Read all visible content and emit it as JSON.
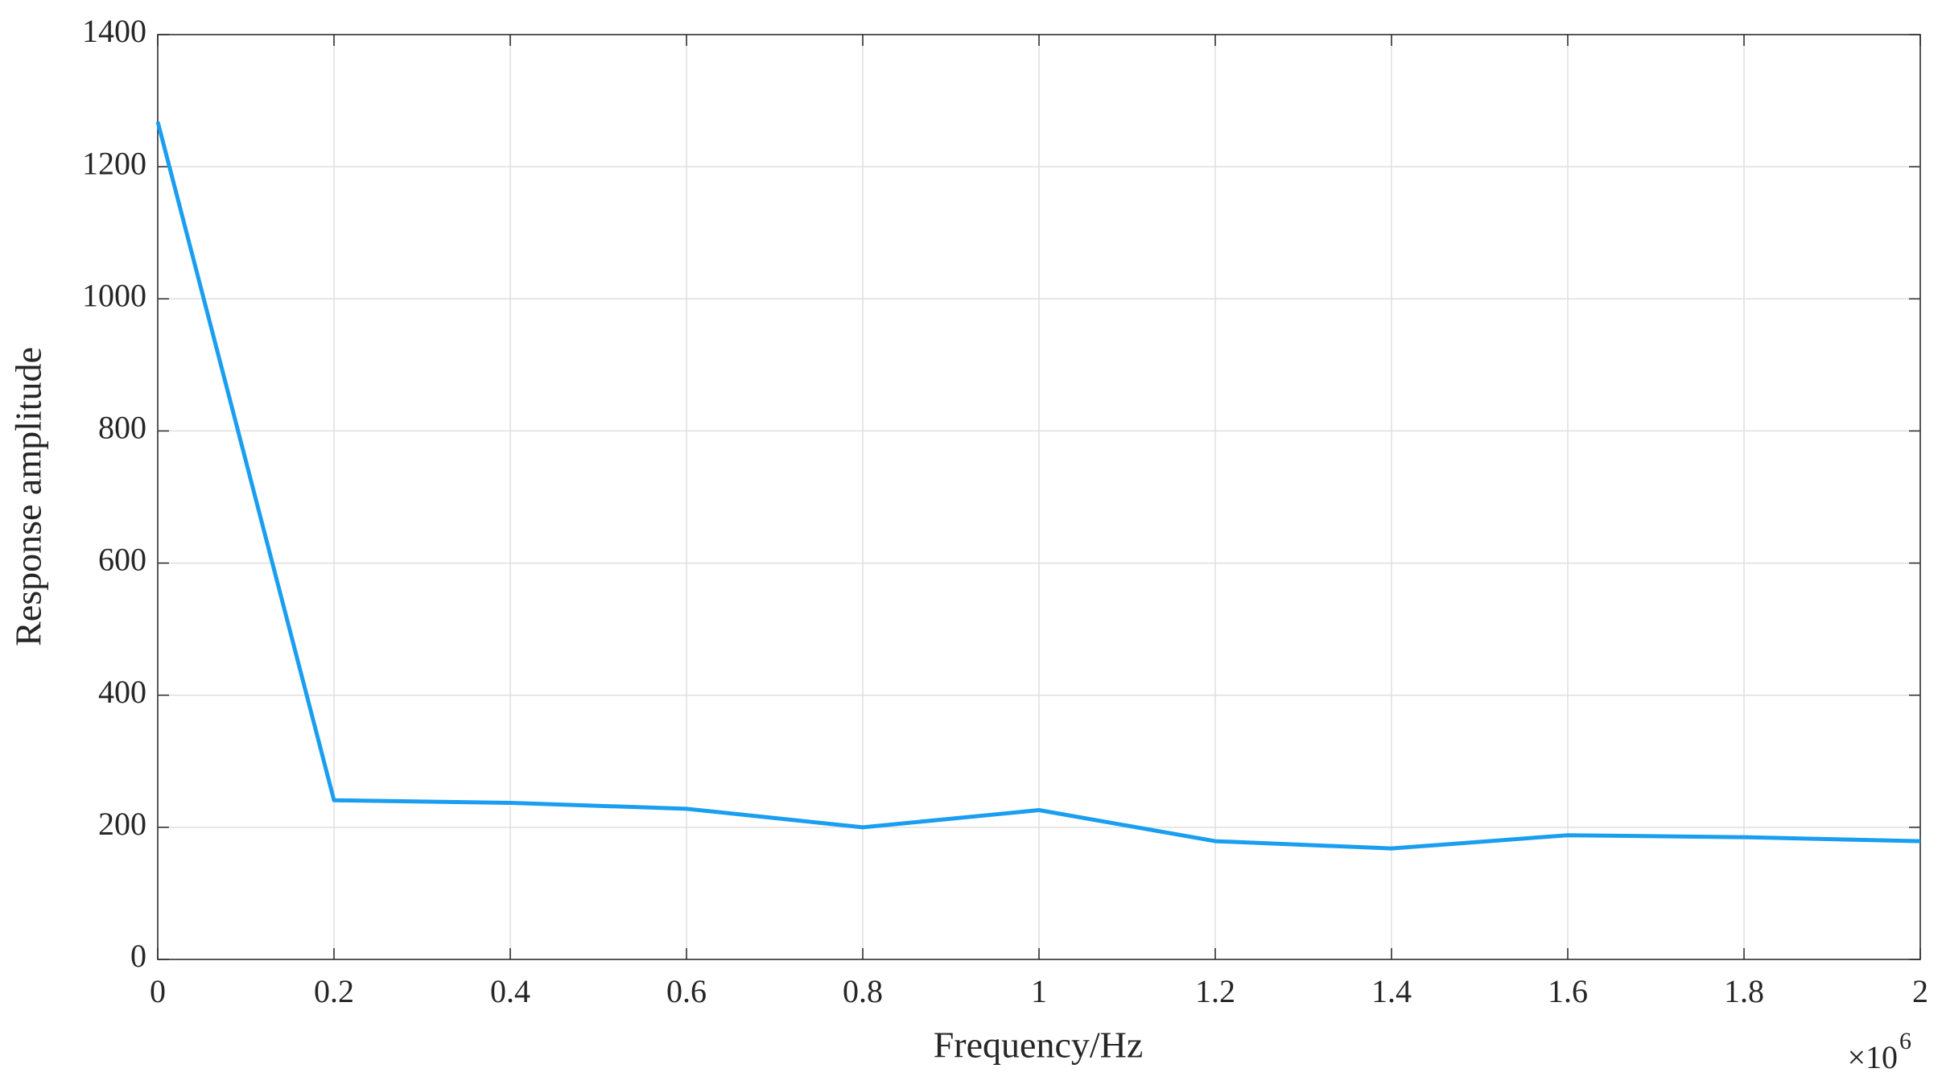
{
  "chart_data": {
    "type": "line",
    "x_label": "Frequency/Hz",
    "y_label": "Response amplitude",
    "x_scale_base": "×10",
    "x_scale_exponent": "6",
    "x": [
      0,
      200000,
      400000,
      600000,
      800000,
      1000000,
      1200000,
      1400000,
      1600000,
      1800000,
      2000000
    ],
    "values": [
      1268,
      241,
      237,
      228,
      200,
      226,
      179,
      168,
      188,
      185,
      179
    ],
    "color": "#1a9ef0",
    "xlim": [
      0,
      2000000
    ],
    "xticks": [
      0,
      {
        "value": 200000,
        "label": "0.2"
      },
      {
        "value": 400000,
        "label": "0.4"
      },
      {
        "value": 600000,
        "label": "0.6"
      },
      {
        "value": 800000,
        "label": "0.8"
      },
      {
        "value": 1000000,
        "label": "1"
      },
      {
        "value": 1200000,
        "label": "1.2"
      },
      {
        "value": 1400000,
        "label": "1.4"
      },
      {
        "value": 1600000,
        "label": "1.6"
      },
      {
        "value": 1800000,
        "label": "1.8"
      },
      {
        "value": 2000000,
        "label": "2"
      }
    ],
    "ylim": [
      0,
      1400
    ],
    "yticks": [
      0,
      200,
      400,
      600,
      800,
      1000,
      1200,
      1400
    ],
    "grid": true
  }
}
